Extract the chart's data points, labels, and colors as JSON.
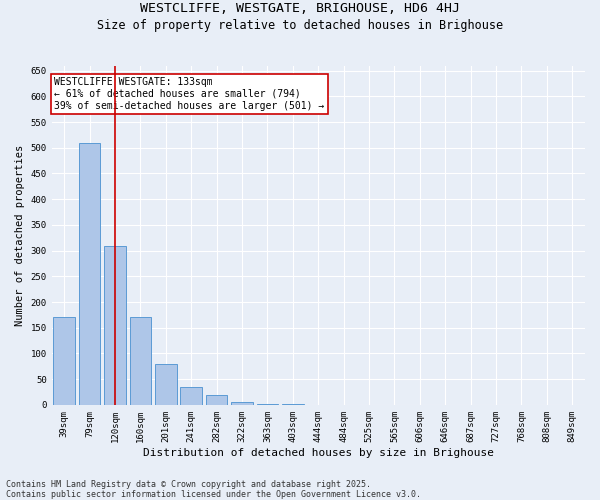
{
  "title": "WESTCLIFFE, WESTGATE, BRIGHOUSE, HD6 4HJ",
  "subtitle": "Size of property relative to detached houses in Brighouse",
  "xlabel": "Distribution of detached houses by size in Brighouse",
  "ylabel": "Number of detached properties",
  "categories": [
    "39sqm",
    "79sqm",
    "120sqm",
    "160sqm",
    "201sqm",
    "241sqm",
    "282sqm",
    "322sqm",
    "363sqm",
    "403sqm",
    "444sqm",
    "484sqm",
    "525sqm",
    "565sqm",
    "606sqm",
    "646sqm",
    "687sqm",
    "727sqm",
    "768sqm",
    "808sqm",
    "849sqm"
  ],
  "values": [
    170,
    510,
    308,
    170,
    80,
    35,
    20,
    5,
    2,
    1,
    0,
    0,
    0,
    0,
    0,
    0,
    0,
    0,
    0,
    0,
    0
  ],
  "bar_color": "#aec6e8",
  "bar_edge_color": "#5b9bd5",
  "vline_x": 2,
  "vline_color": "#cc0000",
  "annotation_text": "WESTCLIFFE WESTGATE: 133sqm\n← 61% of detached houses are smaller (794)\n39% of semi-detached houses are larger (501) →",
  "annotation_box_color": "#ffffff",
  "annotation_box_edge": "#cc0000",
  "ylim": [
    0,
    660
  ],
  "yticks": [
    0,
    50,
    100,
    150,
    200,
    250,
    300,
    350,
    400,
    450,
    500,
    550,
    600,
    650
  ],
  "background_color": "#e8eef7",
  "grid_color": "#ffffff",
  "footer": "Contains HM Land Registry data © Crown copyright and database right 2025.\nContains public sector information licensed under the Open Government Licence v3.0.",
  "title_fontsize": 9.5,
  "subtitle_fontsize": 8.5,
  "xlabel_fontsize": 8,
  "ylabel_fontsize": 7.5,
  "tick_fontsize": 6.5,
  "annotation_fontsize": 7,
  "footer_fontsize": 6
}
